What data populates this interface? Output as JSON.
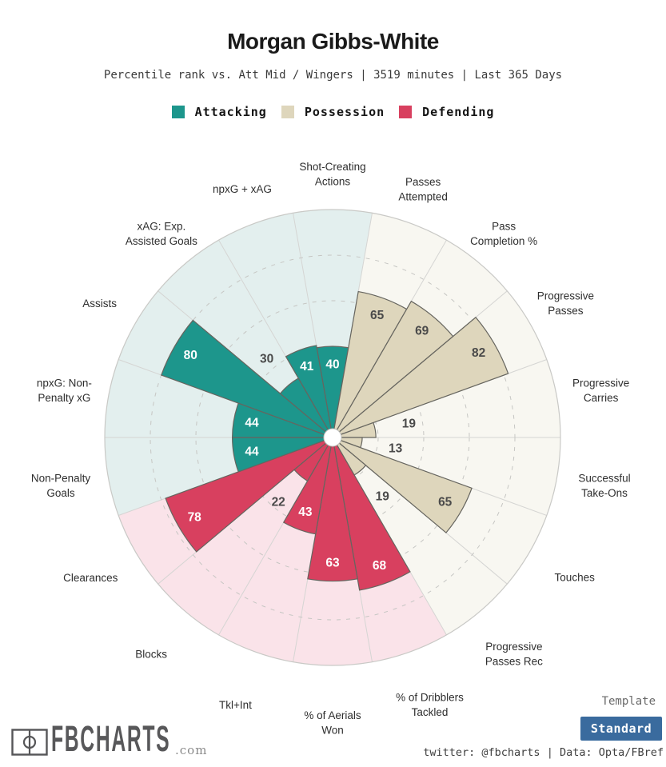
{
  "header": {
    "title": "Morgan Gibbs-White",
    "subtitle": "Percentile rank vs. Att Mid / Wingers | 3519 minutes | Last 365 Days"
  },
  "chart_data": {
    "type": "pizza",
    "description": "Polar percentile bar (pizza) chart: 18 slices of 20 degrees, first slice centered at 12 o'clock, proceeding clockwise; wedge radius = percentile value (0-100)",
    "max": 100,
    "ring_ticks": [
      20,
      40,
      60,
      80
    ],
    "grid": {
      "spoke_color": "#d5d5d3",
      "dashed_ring_color": "#c6c6c3",
      "outer_ring_color": "#c9c9c6",
      "wedge_stroke": "#66655f",
      "center_dot_stroke": "#c4c4c1",
      "category_label_color": "#2e2e2e",
      "outside_value_color": "#4a4a4a"
    },
    "groups": [
      {
        "name": "Attacking",
        "fill": "#1d968c",
        "bg": "#e3efee",
        "value_color": "#ffffff"
      },
      {
        "name": "Possession",
        "fill": "#ded6bc",
        "bg": "#f8f7f1",
        "value_color": "#4a4a4a"
      },
      {
        "name": "Defending",
        "fill": "#d8405f",
        "bg": "#fae3e9",
        "value_color": "#ffffff"
      }
    ],
    "slices": [
      {
        "label": [
          "Shot-Creating",
          "Actions"
        ],
        "value": 40,
        "group": "Attacking"
      },
      {
        "label": [
          "Passes",
          "Attempted"
        ],
        "value": 65,
        "group": "Possession"
      },
      {
        "label": [
          "Pass",
          "Completion %"
        ],
        "value": 69,
        "group": "Possession"
      },
      {
        "label": [
          "Progressive",
          "Passes"
        ],
        "value": 82,
        "group": "Possession"
      },
      {
        "label": [
          "Progressive",
          "Carries"
        ],
        "value": 19,
        "group": "Possession"
      },
      {
        "label": [
          "Successful",
          "Take-Ons"
        ],
        "value": 13,
        "group": "Possession"
      },
      {
        "label": [
          "Touches"
        ],
        "value": 65,
        "group": "Possession"
      },
      {
        "label": [
          "Progressive",
          "Passes Rec"
        ],
        "value": 19,
        "group": "Possession"
      },
      {
        "label": [
          "% of Dribblers",
          "Tackled"
        ],
        "value": 68,
        "group": "Defending"
      },
      {
        "label": [
          "% of Aerials",
          "Won"
        ],
        "value": 63,
        "group": "Defending"
      },
      {
        "label": [
          "Tkl+Int"
        ],
        "value": 43,
        "group": "Defending"
      },
      {
        "label": [
          "Blocks"
        ],
        "value": 22,
        "group": "Defending"
      },
      {
        "label": [
          "Clearances"
        ],
        "value": 78,
        "group": "Defending"
      },
      {
        "label": [
          "Non-Penalty",
          "Goals"
        ],
        "value": 44,
        "group": "Attacking"
      },
      {
        "label": [
          "npxG: Non-",
          "Penalty xG"
        ],
        "value": 44,
        "group": "Attacking"
      },
      {
        "label": [
          "Assists"
        ],
        "value": 80,
        "group": "Attacking"
      },
      {
        "label": [
          "xAG: Exp.",
          "Assisted Goals"
        ],
        "value": 30,
        "group": "Attacking"
      },
      {
        "label": [
          "npxG + xAG"
        ],
        "value": 41,
        "group": "Attacking"
      }
    ]
  },
  "footer": {
    "brand": "FBCHARTS",
    "brand_suffix": ".com",
    "template_label": "Template",
    "template_value": "Standard",
    "button_color": "#3a6b9e",
    "credit": "twitter: @fbcharts | Data: Opta/FBref"
  }
}
